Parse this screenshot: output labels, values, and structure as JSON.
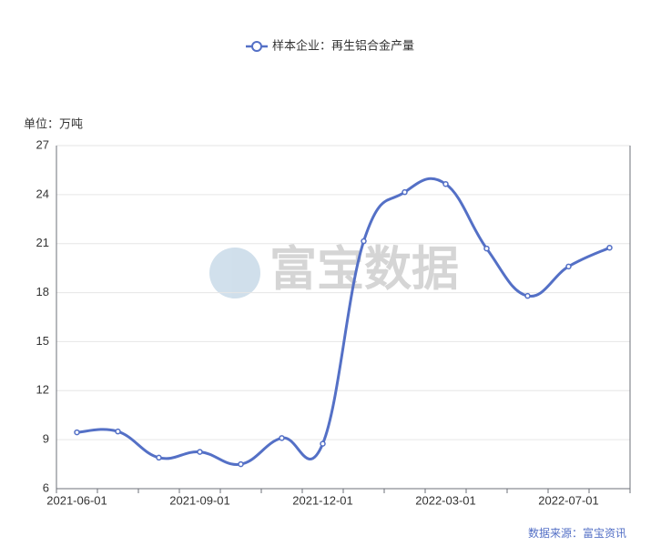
{
  "chart_data": {
    "type": "line",
    "legend": "样本企业：再生铝合金产量",
    "y_label": "单位：万吨",
    "source": "数据来源：富宝资讯",
    "watermark": "富宝数据",
    "categories": [
      "2021-06-01",
      null,
      null,
      "2021-09-01",
      null,
      null,
      "2021-12-01",
      null,
      null,
      "2022-03-01",
      null,
      null,
      "2022-07-01",
      null
    ],
    "series": [
      {
        "name": "样本企业：再生铝合金产量",
        "color": "#5470c6",
        "values": [
          9.45,
          9.5,
          7.9,
          8.25,
          7.5,
          9.1,
          8.75,
          21.15,
          24.15,
          24.65,
          20.7,
          17.8,
          19.6,
          20.75
        ]
      }
    ],
    "ylim": [
      6,
      27
    ],
    "yticks": [
      6,
      9,
      12,
      15,
      18,
      21,
      24,
      27
    ],
    "grid": true,
    "smooth": true
  }
}
